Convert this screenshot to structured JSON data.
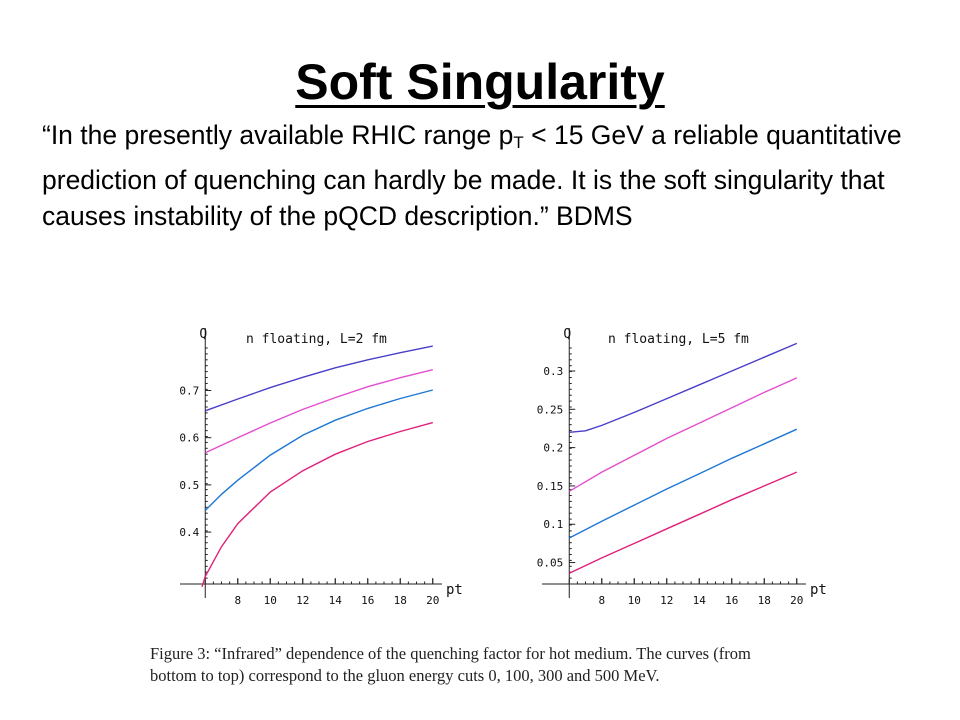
{
  "slide": {
    "title": "Soft Singularity",
    "quote": {
      "part1": "“In the presently available RHIC range p",
      "subscript": "T",
      "part2": " < 15 GeV a reliable quantitative prediction of quenching can hardly be made.  It is the soft singularity that causes instability of the pQCD description.”  BDMS"
    }
  },
  "caption": "Figure 3:  “Infrared” dependence of the quenching factor for hot medium.  The curves (from\nbottom to top) correspond to the gluon energy cuts 0, 100, 300 and 500 MeV.",
  "colors": {
    "axis": "#222222",
    "blue": "#1f77d4",
    "magenta": "#e0207a",
    "purple": "#4a3fc8",
    "pink": "#e34fd0"
  },
  "chart_data": [
    {
      "type": "line",
      "title": "n floating, L=2 fm",
      "xlabel": "pt",
      "ylabel": "Q",
      "xlim": [
        5.8,
        20.2
      ],
      "ylim": [
        0.29,
        0.79
      ],
      "xticks": [
        "8",
        "10",
        "12",
        "14",
        "16",
        "18",
        "20"
      ],
      "yticks": [
        "0.4",
        "0.5",
        "0.6",
        "0.7"
      ],
      "series": [
        {
          "name": "0 MeV",
          "color": "#e0207a",
          "x": [
            5.8,
            6,
            7,
            8,
            10,
            12,
            14,
            16,
            18,
            20
          ],
          "y": [
            0.284,
            0.306,
            0.369,
            0.418,
            0.485,
            0.53,
            0.565,
            0.592,
            0.613,
            0.632
          ]
        },
        {
          "name": "100 MeV",
          "color": "#1f77d4",
          "x": [
            6,
            7,
            8,
            10,
            12,
            14,
            16,
            18,
            20
          ],
          "y": [
            0.446,
            0.48,
            0.51,
            0.563,
            0.605,
            0.637,
            0.662,
            0.683,
            0.701
          ]
        },
        {
          "name": "300 MeV",
          "color": "#e34fd0",
          "x": [
            6,
            8,
            10,
            12,
            14,
            16,
            18,
            20
          ],
          "y": [
            0.568,
            0.6,
            0.631,
            0.66,
            0.685,
            0.708,
            0.727,
            0.744
          ]
        },
        {
          "name": "500 MeV",
          "color": "#4a3fc8",
          "x": [
            6,
            8,
            10,
            12,
            14,
            16,
            18,
            20
          ],
          "y": [
            0.657,
            0.682,
            0.706,
            0.728,
            0.748,
            0.765,
            0.78,
            0.794
          ]
        }
      ]
    },
    {
      "type": "line",
      "title": "n floating, L=5 fm",
      "xlabel": "pt",
      "ylabel": "Q",
      "xlim": [
        5.8,
        20.2
      ],
      "ylim": [
        0.022,
        0.33
      ],
      "xticks": [
        "8",
        "10",
        "12",
        "14",
        "16",
        "18",
        "20"
      ],
      "yticks": [
        "0.05",
        "0.1",
        "0.15",
        "0.2",
        "0.25",
        "0.3"
      ],
      "series": [
        {
          "name": "0 MeV",
          "color": "#e0207a",
          "x": [
            6,
            8,
            10,
            12,
            14,
            16,
            18,
            20
          ],
          "y": [
            0.036,
            0.056,
            0.075,
            0.094,
            0.113,
            0.132,
            0.15,
            0.168
          ]
        },
        {
          "name": "100 MeV",
          "color": "#1f77d4",
          "x": [
            6,
            8,
            10,
            12,
            14,
            16,
            18,
            20
          ],
          "y": [
            0.082,
            0.104,
            0.125,
            0.146,
            0.166,
            0.186,
            0.205,
            0.224
          ]
        },
        {
          "name": "300 MeV",
          "color": "#e34fd0",
          "x": [
            6,
            8,
            10,
            12,
            14,
            16,
            18,
            20
          ],
          "y": [
            0.143,
            0.168,
            0.19,
            0.212,
            0.232,
            0.252,
            0.272,
            0.291
          ]
        },
        {
          "name": "500 MeV",
          "color": "#4a3fc8",
          "x": [
            6,
            7,
            8,
            10,
            12,
            14,
            16,
            18,
            20
          ],
          "y": [
            0.22,
            0.222,
            0.229,
            0.246,
            0.264,
            0.282,
            0.3,
            0.318,
            0.336
          ]
        }
      ]
    }
  ]
}
